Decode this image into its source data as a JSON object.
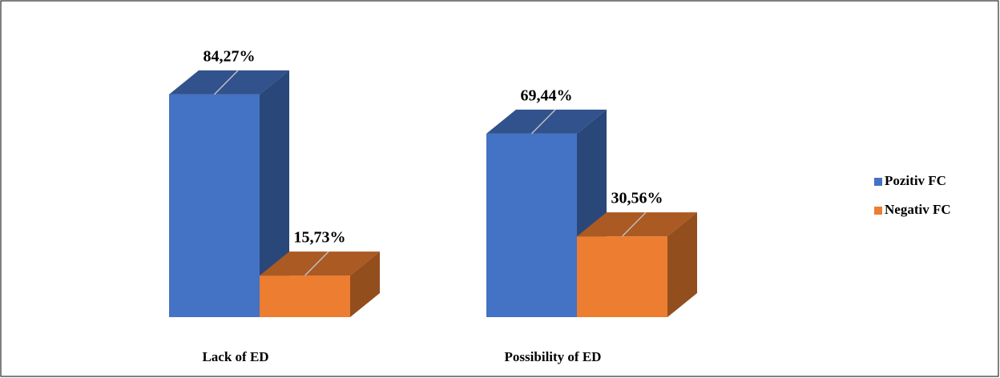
{
  "chart_data": {
    "type": "bar3d",
    "categories": [
      "Lack of ED",
      "Possibility of ED"
    ],
    "series": [
      {
        "name": "Pozitiv FC",
        "color": "#4472c4",
        "values": [
          84.27,
          69.44
        ],
        "value_labels": [
          "84,27%",
          "69,44%"
        ]
      },
      {
        "name": "Negativ FC",
        "color": "#ed7d31",
        "values": [
          15.73,
          30.56
        ],
        "value_labels": [
          "15,73%",
          "30,56%"
        ]
      }
    ],
    "ylim": [
      0,
      100
    ],
    "legend": "right"
  }
}
